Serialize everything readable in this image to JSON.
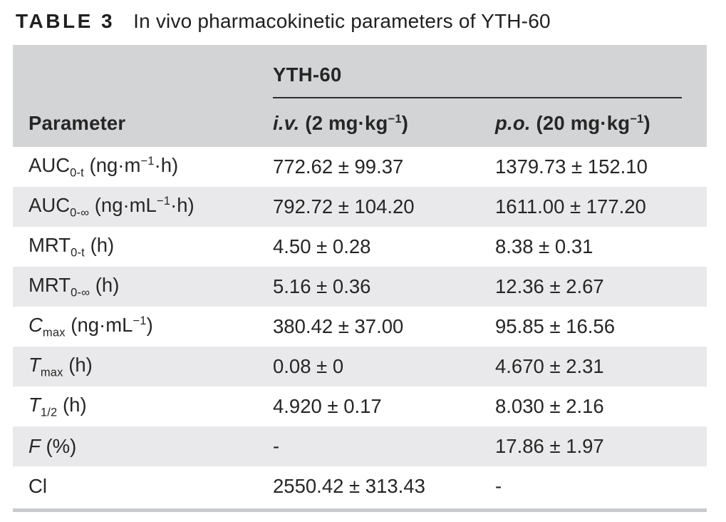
{
  "title": {
    "label": "TABLE 3",
    "text": "In vivo pharmacokinetic parameters of YTH-60"
  },
  "table": {
    "group_header": "YTH-60",
    "columns": {
      "parameter": [
        {
          "t": "Parameter"
        }
      ],
      "iv": [
        {
          "t": "i.v.",
          "style": "i"
        },
        {
          "t": " (2 mg·kg"
        },
        {
          "t": "−1",
          "style": "sup"
        },
        {
          "t": ")"
        }
      ],
      "po": [
        {
          "t": "p.o.",
          "style": "i"
        },
        {
          "t": " (20 mg·kg"
        },
        {
          "t": "−1",
          "style": "sup"
        },
        {
          "t": ")"
        }
      ]
    },
    "rows": [
      {
        "parameter": [
          {
            "t": "AUC"
          },
          {
            "t": "0-t",
            "style": "sub"
          },
          {
            "t": " (ng·m"
          },
          {
            "t": "−1",
            "style": "sup"
          },
          {
            "t": "·h)"
          }
        ],
        "iv": "772.62 ± 99.37",
        "po": "1379.73 ± 152.10"
      },
      {
        "parameter": [
          {
            "t": "AUC"
          },
          {
            "t": "0-∞",
            "style": "sub"
          },
          {
            "t": " (ng·mL"
          },
          {
            "t": "−1",
            "style": "sup"
          },
          {
            "t": "·h)"
          }
        ],
        "iv": "792.72 ± 104.20",
        "po": "1611.00 ± 177.20"
      },
      {
        "parameter": [
          {
            "t": "MRT"
          },
          {
            "t": "0-t",
            "style": "sub"
          },
          {
            "t": " (h)"
          }
        ],
        "iv": "4.50 ± 0.28",
        "po": "8.38 ± 0.31"
      },
      {
        "parameter": [
          {
            "t": "MRT"
          },
          {
            "t": "0-∞",
            "style": "sub"
          },
          {
            "t": " (h)"
          }
        ],
        "iv": "5.16 ± 0.36",
        "po": "12.36 ± 2.67"
      },
      {
        "parameter": [
          {
            "t": "C",
            "style": "i"
          },
          {
            "t": "max",
            "style": "sub"
          },
          {
            "t": " (ng·mL"
          },
          {
            "t": "−1",
            "style": "sup"
          },
          {
            "t": ")"
          }
        ],
        "iv": "380.42 ± 37.00",
        "po": "95.85 ± 16.56"
      },
      {
        "parameter": [
          {
            "t": "T",
            "style": "i"
          },
          {
            "t": "max",
            "style": "sub"
          },
          {
            "t": " (h)"
          }
        ],
        "iv": "0.08 ± 0",
        "po": "4.670 ± 2.31"
      },
      {
        "parameter": [
          {
            "t": "T",
            "style": "i"
          },
          {
            "t": "1/2",
            "style": "sub"
          },
          {
            "t": " (h)"
          }
        ],
        "iv": "4.920 ± 0.17",
        "po": "8.030 ± 2.16"
      },
      {
        "parameter": [
          {
            "t": "F",
            "style": "i"
          },
          {
            "t": " (%)"
          }
        ],
        "iv": "-",
        "po": "17.86 ± 1.97"
      },
      {
        "parameter": [
          {
            "t": "Cl"
          }
        ],
        "iv": "2550.42 ± 313.43",
        "po": "-"
      }
    ]
  },
  "colors": {
    "header_bg": "#d3d4d6",
    "stripe_bg": "#e9e9eb",
    "bottom_bar": "#c9cacd",
    "text": "#262626",
    "rule": "#2e2e30"
  }
}
